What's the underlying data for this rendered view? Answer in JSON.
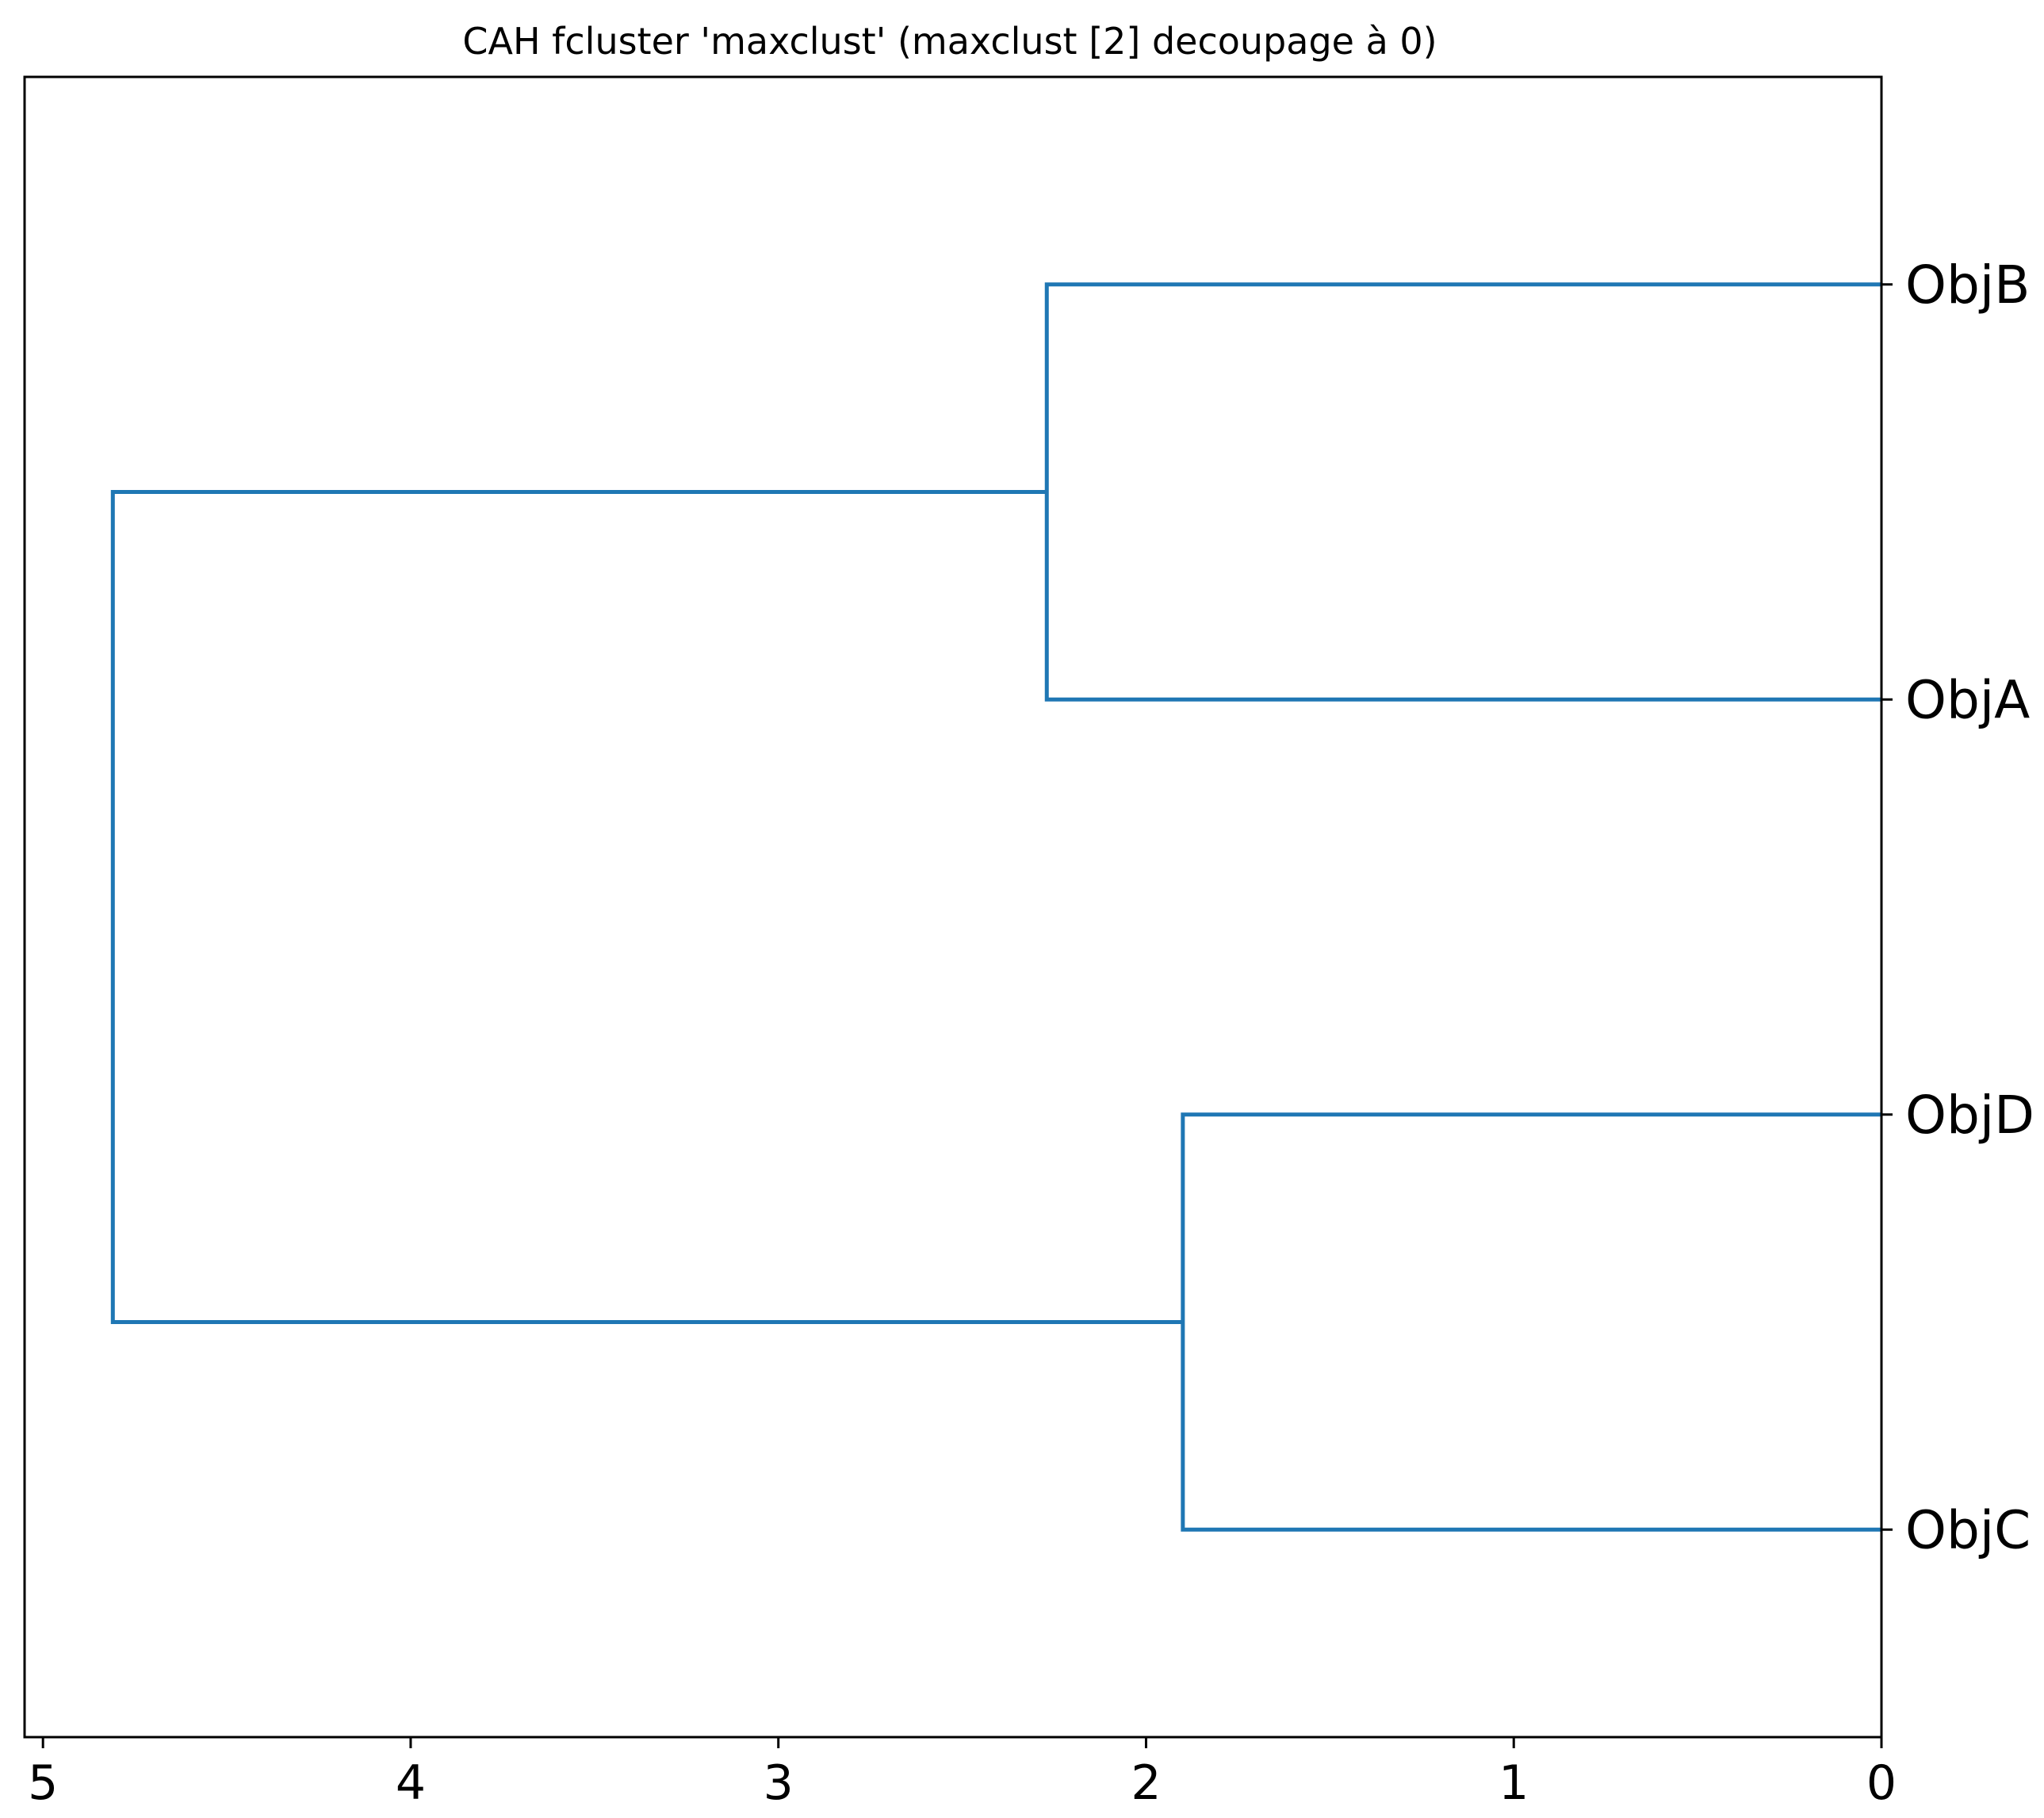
{
  "chart_data": {
    "type": "dendrogram",
    "title": "CAH fcluster 'maxclust' (maxclust [2] decoupage à 0)",
    "orientation": "left",
    "xlim": [
      5.05,
      0
    ],
    "x_ticks": [
      5,
      4,
      3,
      2,
      1,
      0
    ],
    "x_tick_labels": [
      "5",
      "4",
      "3",
      "2",
      "1",
      "0"
    ],
    "leaves": [
      "ObjB",
      "ObjA",
      "ObjD",
      "ObjC"
    ],
    "merges": [
      {
        "children": [
          "ObjB",
          "ObjA"
        ],
        "distance": 2.27
      },
      {
        "children": [
          "ObjD",
          "ObjC"
        ],
        "distance": 1.9
      },
      {
        "children": [
          "ObjB+ObjA",
          "ObjD+ObjC"
        ],
        "distance": 4.81
      }
    ],
    "threshold": 0,
    "link_color": "#1f77b4",
    "threshold_line_color": "#000000",
    "grid": false
  }
}
